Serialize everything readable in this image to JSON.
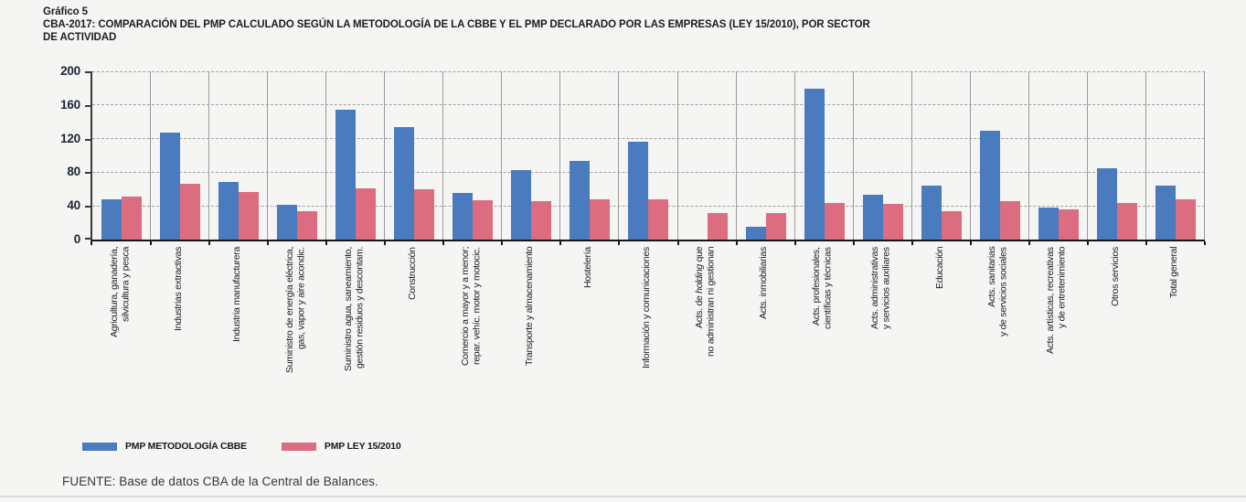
{
  "header": {
    "label": "Gráfico 5",
    "title_line1": "CBA-2017: COMPARACIÓN DEL PMP CALCULADO SEGÚN LA METODOLOGÍA DE LA CBBE Y EL PMP DECLARADO POR LAS EMPRESAS (LEY 15/2010), POR SECTOR",
    "title_line2": "DE ACTIVIDAD"
  },
  "chart_data": {
    "type": "bar",
    "title": "CBA-2017: Comparación del PMP calculado según la metodología de la CBBE y el PMP declarado por las empresas (Ley 15/2010), por sector de actividad",
    "ylim": [
      0,
      200
    ],
    "y_ticks": [
      0,
      40,
      80,
      120,
      160,
      200
    ],
    "grid": "horizontal dashed lines every 40; solid vertical separators between categories",
    "legend_position": "bottom-left",
    "categories": [
      "Agricultura, ganadería, silvicultura y pesca",
      "Industrias extractivas",
      "Industria manufacturera",
      "Suministro de energía eléctrica, gas, vapor y aire acondic.",
      "Suministro agua, saneamiento, gestión residuos y descontam.",
      "Construcción",
      "Comercio a mayor y a menor; repar. vehíc. motor y motocic.",
      "Transporte y almacenamiento",
      "Hostelería",
      "Información y comunicaciones",
      "Acts. de holding que no administran ni gestionan",
      "Acts. inmobiliarias",
      "Acts. profesionales, científicas y técnicas",
      "Acts. administrativas y servicios auxiliares",
      "Educación",
      "Acts. sanitarias y de servicios sociales",
      "Acts. artísticas, recreativas y de entretenimiento",
      "Otros servicios",
      "Total general"
    ],
    "category_label_lines": [
      [
        "Agricultura, ganadería,",
        "silvicultura y pesca"
      ],
      [
        "Industrias extractivas"
      ],
      [
        "Industria manufacturera"
      ],
      [
        "Suministro de energía eléctrica,",
        "gas, vapor y aire acondic."
      ],
      [
        "Suministro agua, saneamiento,",
        "gestión residuos y descontam."
      ],
      [
        "Construcción"
      ],
      [
        "Comercio a mayor y a menor;",
        "repar. vehíc. motor y motocic."
      ],
      [
        "Transporte y almacenamiento"
      ],
      [
        "Hostelería"
      ],
      [
        "Información y comunicaciones"
      ],
      [
        "Acts. de *holding* que",
        "no administran ni gestionan"
      ],
      [
        "Acts. inmobiliarias"
      ],
      [
        "Acts. profesionales,",
        "científicas y técnicas"
      ],
      [
        "Acts. administrativas",
        "y servicios auxiliares"
      ],
      [
        "Educación"
      ],
      [
        "Acts. sanitarias",
        "y de servicios sociales"
      ],
      [
        "Acts. artísticas, recreativas",
        "y de entretenimiento"
      ],
      [
        "Otros servicios"
      ],
      [
        "Total general"
      ]
    ],
    "series": [
      {
        "name": "PMP METODOLOGÍA CBBE",
        "color": "#4a7bbf",
        "values": [
          48,
          127,
          68,
          41,
          154,
          134,
          55,
          83,
          94,
          116,
          0,
          15,
          179,
          53,
          64,
          129,
          38,
          85,
          64
        ]
      },
      {
        "name": "PMP LEY 15/2010",
        "color": "#dc6c7f",
        "values": [
          51,
          66,
          56,
          34,
          61,
          60,
          47,
          46,
          48,
          48,
          32,
          31,
          43,
          42,
          34,
          46,
          36,
          43,
          48
        ]
      }
    ]
  },
  "footer": {
    "source": "FUENTE: Base de datos CBA de la Central de Balances."
  },
  "colors": {
    "background": "#f5f5f3",
    "series_cbbe": "#4a7bbf",
    "series_ley": "#dc6c7f",
    "grid_dashed": "#a2a2a2",
    "grid_vertical": "#9b9b9b",
    "axis": "#3a3a3a",
    "text": "#1d1d1f",
    "bottom_rule": "#d8dade"
  }
}
